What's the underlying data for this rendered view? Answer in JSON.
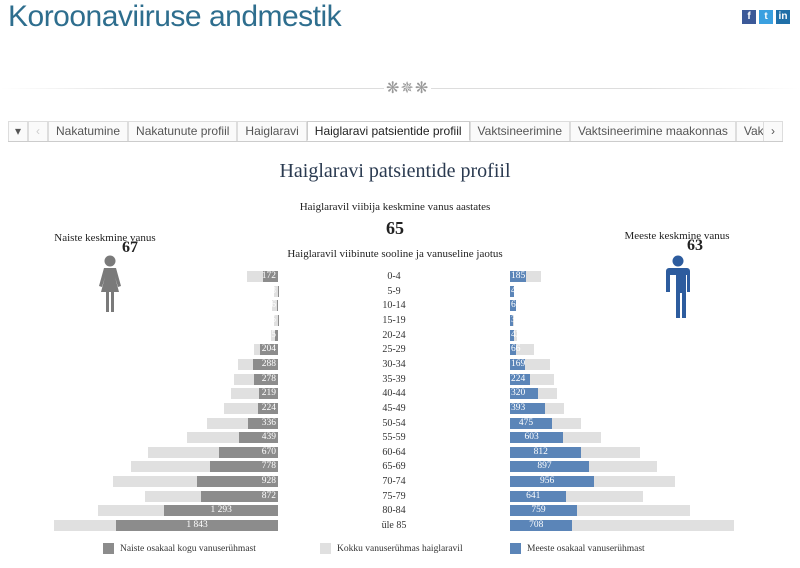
{
  "header": {
    "title": "Koroonaviiruse andmestik",
    "social": [
      "facebook",
      "twitter",
      "linkedin"
    ],
    "ornament": "❋✵❋"
  },
  "tabs": {
    "items": [
      "Nakatumine",
      "Nakatunute profiil",
      "Haiglaravi",
      "Haiglaravi patsientide profiil",
      "Vaktsineerimine",
      "Vaktsineerimine maakonnas",
      "Vakts"
    ],
    "active": 3
  },
  "dashboard": {
    "title": "Haiglaravi patsientide profiil",
    "avg_label": "Haiglaravil viibija keskmine vanus aastates",
    "avg_value": "65",
    "women_label": "Naiste keskmine vanus",
    "women_value": "67",
    "men_label": "Meeste keskmine vanus",
    "men_value": "63",
    "dist_title": "Haiglaravil viibinute sooline ja vanuseline jaotus"
  },
  "colors": {
    "women": "#8c8c8c",
    "men": "#5b85b8",
    "total": "#e0e0e0",
    "men_icon": "#2d5c9e"
  },
  "chart_data": {
    "type": "bar",
    "orientation": "horizontal-pyramid",
    "categories": [
      "0-4",
      "5-9",
      "10-14",
      "15-19",
      "20-24",
      "25-29",
      "30-34",
      "35-39",
      "40-44",
      "45-49",
      "50-54",
      "55-59",
      "60-64",
      "65-69",
      "70-74",
      "75-79",
      "80-84",
      "üle 85"
    ],
    "women_labels": [
      "172",
      "3",
      "6",
      "5",
      "35",
      "204",
      "288",
      "278",
      "219",
      "224",
      "336",
      "439",
      "670",
      "778",
      "928",
      "872",
      "1 293",
      "1 843"
    ],
    "men_labels": [
      "185",
      "45",
      "63",
      "39",
      "43",
      "66",
      "169",
      "224",
      "320",
      "393",
      "475",
      "603",
      "812",
      "897",
      "956",
      "641",
      "759",
      "708"
    ],
    "series": [
      {
        "name": "Naiste osakaal kogu vanuserühmast",
        "values": [
          172,
          3,
          6,
          5,
          35,
          204,
          288,
          278,
          219,
          224,
          336,
          439,
          670,
          778,
          928,
          872,
          1293,
          1843
        ]
      },
      {
        "name": "Meeste osakaal vanuserühmast",
        "values": [
          185,
          45,
          63,
          39,
          43,
          66,
          169,
          224,
          320,
          393,
          475,
          603,
          812,
          897,
          956,
          641,
          759,
          708
        ]
      }
    ],
    "total_name": "Kokku vanuserühmas haiglaravil"
  }
}
